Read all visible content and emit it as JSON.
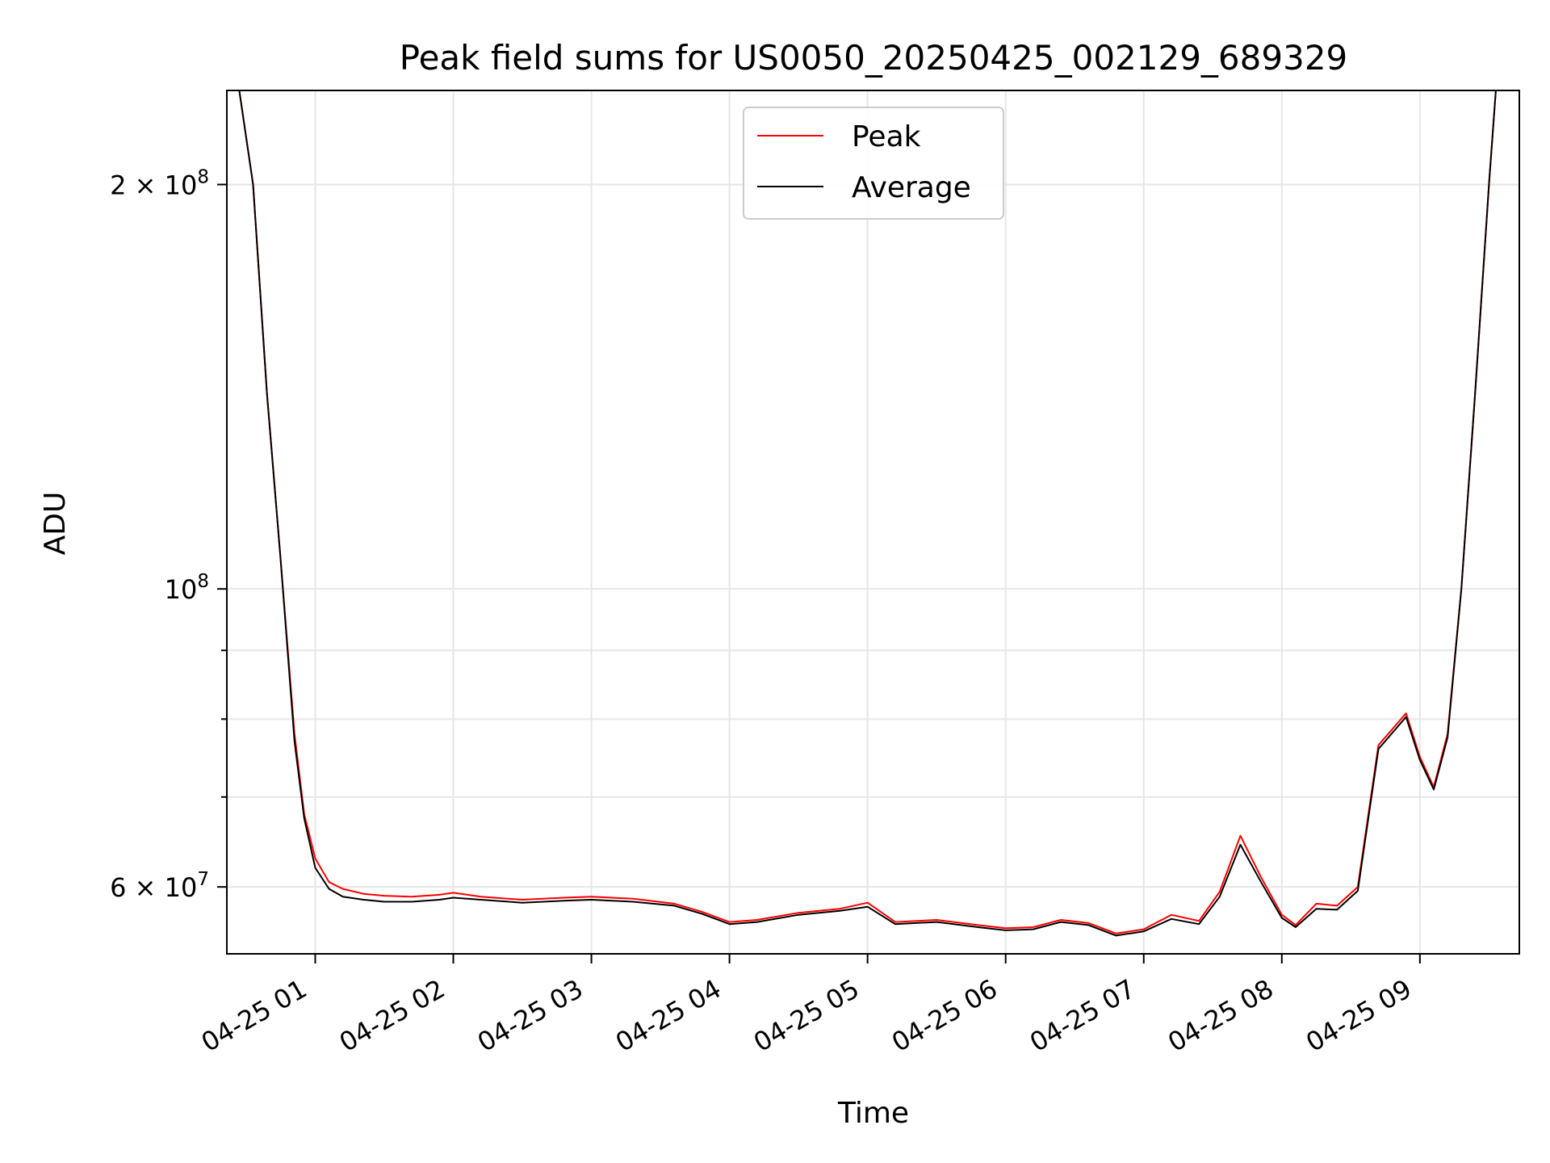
{
  "chart_data": {
    "type": "line",
    "title": "Peak field sums for US0050_20250425_002129_689329",
    "xlabel": "Time",
    "ylabel": "ADU",
    "yscale": "log",
    "ylim": [
      53500000,
      235000000
    ],
    "xlim_hours": [
      0.36,
      9.72
    ],
    "x_ticks": [
      {
        "value": 1,
        "label": "04-25 01"
      },
      {
        "value": 2,
        "label": "04-25 02"
      },
      {
        "value": 3,
        "label": "04-25 03"
      },
      {
        "value": 4,
        "label": "04-25 04"
      },
      {
        "value": 5,
        "label": "04-25 05"
      },
      {
        "value": 6,
        "label": "04-25 06"
      },
      {
        "value": 7,
        "label": "04-25 07"
      },
      {
        "value": 8,
        "label": "04-25 08"
      },
      {
        "value": 9,
        "label": "04-25 09"
      }
    ],
    "y_ticks_major": [
      {
        "value": 60000000,
        "base": "6 × 10",
        "exp": "7"
      },
      {
        "value": 100000000,
        "base": "10",
        "exp": "8"
      },
      {
        "value": 200000000,
        "base": "2 × 10",
        "exp": "8"
      }
    ],
    "y_ticks_minor": [
      70000000,
      80000000,
      90000000
    ],
    "grid": true,
    "legend_position": "top-center",
    "series": [
      {
        "name": "Peak",
        "color": "#ff0000",
        "x": [
          0.36,
          0.45,
          0.55,
          0.65,
          0.75,
          0.85,
          0.92,
          1.0,
          1.1,
          1.2,
          1.35,
          1.5,
          1.7,
          1.9,
          2.0,
          2.2,
          2.5,
          2.8,
          3.0,
          3.3,
          3.6,
          3.8,
          4.0,
          4.2,
          4.5,
          4.8,
          5.0,
          5.2,
          5.5,
          5.8,
          6.0,
          6.2,
          6.4,
          6.6,
          6.8,
          7.0,
          7.2,
          7.4,
          7.55,
          7.7,
          7.85,
          8.0,
          8.1,
          8.25,
          8.4,
          8.55,
          8.7,
          8.9,
          9.0,
          9.1,
          9.2,
          9.3,
          9.4,
          9.5,
          9.55,
          9.6,
          9.72
        ],
        "y": [
          235000000,
          235000000,
          200000000,
          140000000,
          105000000,
          78000000,
          68000000,
          63000000,
          60500000,
          59800000,
          59300000,
          59100000,
          59000000,
          59200000,
          59400000,
          59000000,
          58700000,
          58900000,
          59000000,
          58800000,
          58300000,
          57500000,
          56500000,
          56700000,
          57400000,
          57800000,
          58400000,
          56500000,
          56700000,
          56200000,
          55900000,
          56000000,
          56700000,
          56400000,
          55400000,
          55800000,
          57200000,
          56600000,
          59500000,
          65500000,
          61000000,
          57200000,
          56200000,
          58300000,
          58100000,
          60000000,
          76500000,
          80800000,
          75000000,
          71200000,
          78000000,
          100000000,
          140000000,
          200000000,
          235000000,
          235000000,
          235000000
        ]
      },
      {
        "name": "Average",
        "color": "#000000",
        "x": [
          0.36,
          0.45,
          0.55,
          0.65,
          0.75,
          0.85,
          0.92,
          1.0,
          1.1,
          1.2,
          1.35,
          1.5,
          1.7,
          1.9,
          2.0,
          2.2,
          2.5,
          2.8,
          3.0,
          3.3,
          3.6,
          3.8,
          4.0,
          4.2,
          4.5,
          4.8,
          5.0,
          5.2,
          5.5,
          5.8,
          6.0,
          6.2,
          6.4,
          6.6,
          6.8,
          7.0,
          7.2,
          7.4,
          7.55,
          7.7,
          7.85,
          8.0,
          8.1,
          8.25,
          8.4,
          8.55,
          8.7,
          8.9,
          9.0,
          9.1,
          9.2,
          9.3,
          9.4,
          9.5,
          9.55,
          9.6,
          9.72
        ],
        "y": [
          235000000,
          235000000,
          200000000,
          140000000,
          105000000,
          77000000,
          67500000,
          62000000,
          59800000,
          59000000,
          58700000,
          58500000,
          58500000,
          58700000,
          58900000,
          58700000,
          58400000,
          58600000,
          58700000,
          58500000,
          58100000,
          57300000,
          56300000,
          56500000,
          57200000,
          57600000,
          58000000,
          56300000,
          56500000,
          56000000,
          55700000,
          55800000,
          56500000,
          56200000,
          55200000,
          55600000,
          56800000,
          56300000,
          59000000,
          64500000,
          60500000,
          56900000,
          56000000,
          57800000,
          57700000,
          59600000,
          76000000,
          80300000,
          74600000,
          70900000,
          77500000,
          100000000,
          140000000,
          200000000,
          235000000,
          235000000,
          235000000
        ]
      }
    ]
  }
}
